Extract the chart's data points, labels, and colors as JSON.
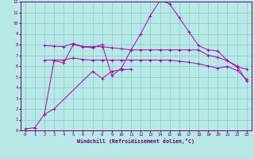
{
  "background_color": "#b8e8e8",
  "grid_color": "#88ccbb",
  "line_color": "#aa00aa",
  "spine_color": "#660066",
  "text_color": "#660066",
  "xlim": [
    -0.5,
    23.5
  ],
  "ylim": [
    0,
    12
  ],
  "xticks": [
    0,
    1,
    2,
    3,
    4,
    5,
    6,
    7,
    8,
    9,
    10,
    11,
    12,
    13,
    14,
    15,
    16,
    17,
    18,
    19,
    20,
    21,
    22,
    23
  ],
  "yticks": [
    0,
    1,
    2,
    3,
    4,
    5,
    6,
    7,
    8,
    9,
    10,
    11,
    12
  ],
  "xlabel": "Windchill (Refroidissement éolien,°C)",
  "line1_x": [
    0,
    1
  ],
  "line1_y": [
    0.15,
    0.25
  ],
  "line2_x": [
    1,
    2,
    3,
    4,
    5,
    6,
    7,
    8,
    9,
    10,
    11,
    12,
    13,
    14,
    15,
    16,
    17,
    18,
    19,
    20,
    21,
    22,
    23
  ],
  "line2_y": [
    0.25,
    1.5,
    6.5,
    6.3,
    8.0,
    7.8,
    7.7,
    8.0,
    5.1,
    5.8,
    7.5,
    9.0,
    10.7,
    12.1,
    11.8,
    10.5,
    9.2,
    7.9,
    7.5,
    7.4,
    6.5,
    5.9,
    5.7
  ],
  "line3_x": [
    2,
    3,
    4,
    5,
    6,
    7,
    8,
    9,
    10,
    11,
    12,
    13,
    14,
    15,
    16,
    17,
    18,
    19,
    20,
    21,
    22,
    23
  ],
  "line3_y": [
    7.9,
    7.85,
    7.8,
    8.1,
    7.8,
    7.8,
    7.8,
    7.7,
    7.6,
    7.5,
    7.5,
    7.5,
    7.5,
    7.5,
    7.5,
    7.5,
    7.5,
    7.0,
    6.8,
    6.5,
    6.0,
    4.6
  ],
  "line4_x": [
    2,
    3,
    4,
    5,
    6,
    7,
    8,
    9,
    10,
    11,
    12,
    13,
    14,
    15,
    16,
    17,
    18,
    19,
    20,
    21,
    22,
    23
  ],
  "line4_y": [
    6.55,
    6.55,
    6.55,
    6.75,
    6.6,
    6.55,
    6.55,
    6.55,
    6.55,
    6.55,
    6.55,
    6.55,
    6.55,
    6.55,
    6.45,
    6.35,
    6.2,
    6.0,
    5.8,
    5.95,
    5.6,
    4.75
  ],
  "line5_x": [
    2,
    3,
    7,
    8,
    9,
    10,
    11
  ],
  "line5_y": [
    1.5,
    2.0,
    5.5,
    4.85,
    5.5,
    5.65,
    5.7
  ]
}
